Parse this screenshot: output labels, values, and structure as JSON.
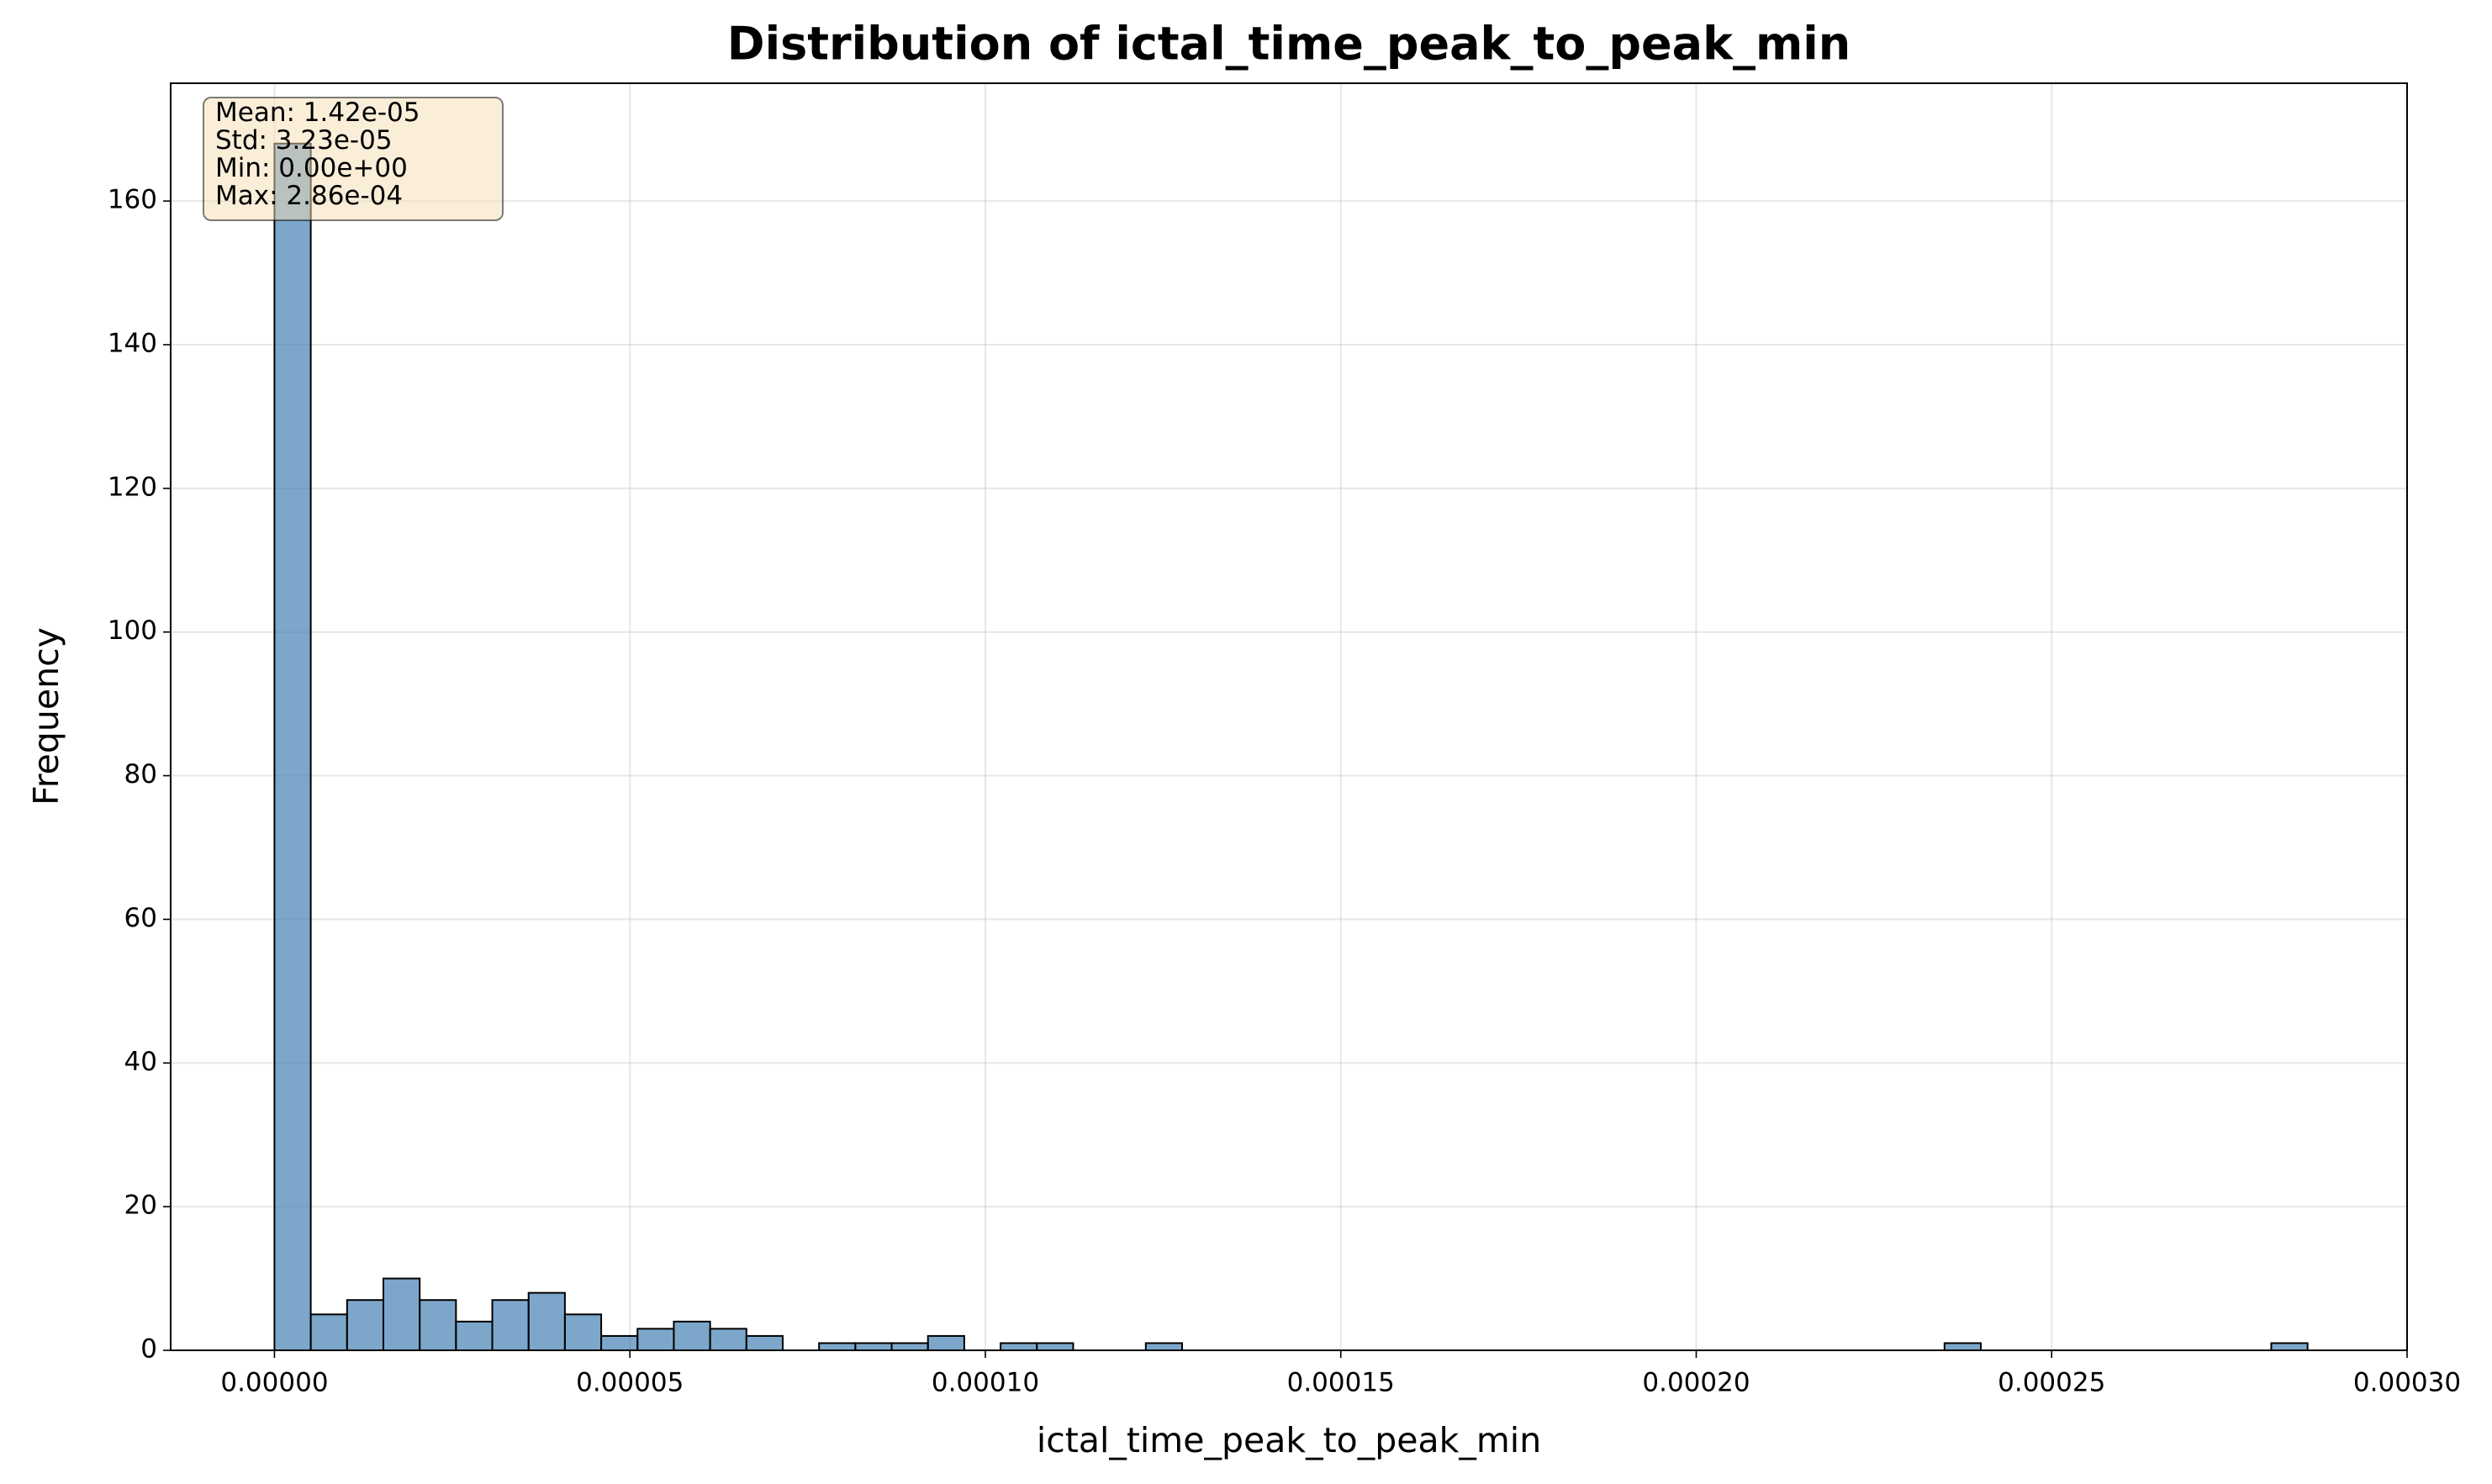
{
  "chart_data": {
    "type": "histogram",
    "title": "Distribution of ictal_time_peak_to_peak_min",
    "x_label": "ictal_time_peak_to_peak_min",
    "y_label": "Frequency",
    "color": "#4682b4",
    "edge_color": "#000000",
    "grid": true,
    "bins": [
      0,
      5.107e-06,
      1.0214e-05,
      1.5321e-05,
      2.0429e-05,
      2.5536e-05,
      3.0643e-05,
      3.575e-05,
      4.0857e-05,
      4.5964e-05,
      5.1071e-05,
      5.6179e-05,
      6.1286e-05,
      6.6393e-05,
      7.15e-05,
      7.6607e-05,
      8.1714e-05,
      8.6821e-05,
      9.1929e-05,
      9.7036e-05,
      0.000102143,
      0.00010725,
      0.000112357,
      0.000117464,
      0.000122571,
      0.000127679,
      0.000132786,
      0.000137893,
      0.000143,
      0.000148107,
      0.000153214,
      0.000158321,
      0.000163429,
      0.000168536,
      0.000173643,
      0.00017875,
      0.000183857,
      0.000188964,
      0.000194071,
      0.000199179,
      0.000204286,
      0.000209393,
      0.0002145,
      0.000219607,
      0.000224714,
      0.000229821,
      0.000234929,
      0.000240036,
      0.000245143,
      0.00025025,
      0.000255357,
      0.000260464,
      0.000265571,
      0.000270679,
      0.000275786,
      0.000280893,
      0.000286
    ],
    "values": [
      168,
      5,
      7,
      10,
      7,
      4,
      7,
      8,
      5,
      2,
      3,
      4,
      3,
      2,
      0,
      1,
      1,
      1,
      2,
      0,
      1,
      1,
      0,
      0,
      1,
      0,
      0,
      0,
      0,
      0,
      0,
      0,
      0,
      0,
      0,
      0,
      0,
      0,
      0,
      0,
      0,
      0,
      0,
      0,
      0,
      0,
      1,
      0,
      0,
      0,
      0,
      0,
      0,
      0,
      0,
      1
    ],
    "xlim": [
      -1.46e-05,
      0.0003
    ],
    "ylim": [
      0,
      176.4
    ],
    "xticks": [
      {
        "value": 0,
        "label": "0.00000"
      },
      {
        "value": 5e-05,
        "label": "0.00005"
      },
      {
        "value": 0.0001,
        "label": "0.00010"
      },
      {
        "value": 0.00015,
        "label": "0.00015"
      },
      {
        "value": 0.0002,
        "label": "0.00020"
      },
      {
        "value": 0.00025,
        "label": "0.00025"
      },
      {
        "value": 0.0003,
        "label": "0.00030"
      }
    ],
    "yticks": [
      0,
      20,
      40,
      60,
      80,
      100,
      120,
      140,
      160
    ],
    "stats_box": [
      "Mean: 1.42e-05",
      "Std: 3.23e-05",
      "Min: 0.00e+00",
      "Max: 2.86e-04"
    ]
  }
}
